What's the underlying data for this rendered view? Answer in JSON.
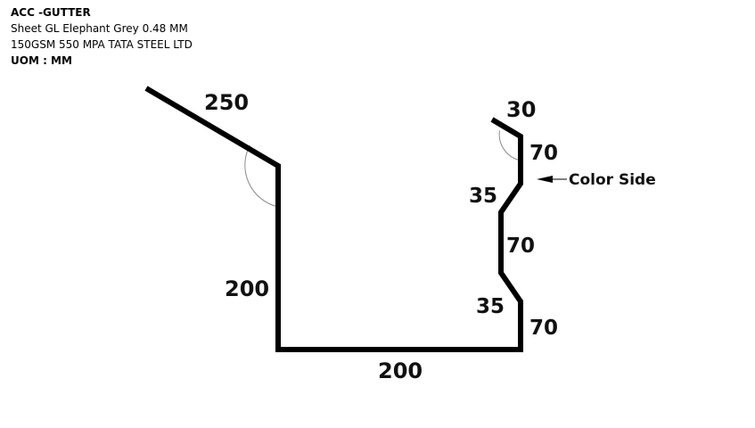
{
  "header": {
    "title": "ACC -GUTTER",
    "description": "Sheet GL Elephant Grey 0.48 MM 150GSM 550 MPA TATA STEEL LTD",
    "uom": "UOM : MM"
  },
  "dimensions": {
    "top_slope": "250",
    "left_vertical": "200",
    "bottom": "200",
    "return_lip": "30",
    "upper_vertical": "70",
    "upper_diagonal": "35",
    "middle_vertical": "70",
    "lower_diagonal": "35",
    "lower_vertical": "70"
  },
  "labels": {
    "color_side": "Color Side"
  },
  "colors": {
    "profile": "#000000",
    "angle_arc": "#8a8a8a"
  }
}
